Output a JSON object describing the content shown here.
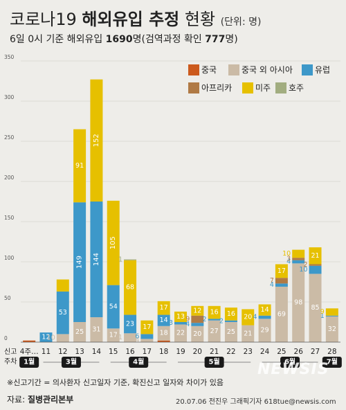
{
  "title": {
    "main": "코로나19",
    "bold": "해외유입 추정",
    "tail": "현황",
    "unit": "(단위: 명)"
  },
  "subtitle": {
    "prefix": "6일 0시 기준 해외유입",
    "total": "1690",
    "middle": "명(검역과정 확인",
    "quarantine": "777",
    "suffix": "명)"
  },
  "chart_data": {
    "type": "bar",
    "stacked": true,
    "ylim": [
      0,
      350
    ],
    "yticks": [
      0,
      50,
      100,
      150,
      200,
      250,
      300,
      350
    ],
    "legend_position": "top-right",
    "x_axis_caption": [
      "신고",
      "주차"
    ],
    "categories": [
      "4주…",
      "11",
      "12",
      "13",
      "14",
      "15",
      "16",
      "17",
      "18",
      "19",
      "20",
      "21",
      "22",
      "23",
      "24",
      "25",
      "26",
      "27",
      "28"
    ],
    "series": [
      {
        "name": "중국",
        "color": "#cc5a1d",
        "values": [
          2,
          0,
          0,
          0,
          0,
          0,
          0,
          0,
          2,
          0,
          0,
          0,
          0,
          0,
          0,
          0,
          0,
          0,
          0
        ]
      },
      {
        "name": "중국 외 아시아",
        "color": "#cbbba6",
        "values": [
          0,
          0,
          10,
          25,
          31,
          17,
          11,
          4,
          18,
          22,
          20,
          27,
          25,
          21,
          29,
          69,
          98,
          85,
          32
        ]
      },
      {
        "name": "유럽",
        "color": "#3d98c9",
        "values": [
          0,
          12,
          53,
          149,
          144,
          54,
          23,
          6,
          14,
          3,
          4,
          2,
          2,
          0,
          4,
          4,
          4,
          10,
          1
        ]
      },
      {
        "name": "아프리카",
        "color": "#b07a45",
        "values": [
          0,
          0,
          0,
          0,
          0,
          0,
          0,
          0,
          0,
          0,
          9,
          0,
          0,
          0,
          0,
          7,
          3,
          2,
          0
        ]
      },
      {
        "name": "미주",
        "color": "#e6c000",
        "values": [
          0,
          0,
          15,
          91,
          152,
          105,
          68,
          17,
          17,
          13,
          12,
          16,
          16,
          20,
          14,
          17,
          10,
          21,
          9
        ]
      },
      {
        "name": "호주",
        "color": "#a2ad80",
        "values": [
          0,
          0,
          0,
          0,
          0,
          0,
          1,
          0,
          0,
          0,
          0,
          0,
          0,
          0,
          0,
          0,
          0,
          0,
          0
        ]
      }
    ],
    "data_labels": [
      {
        "category": "11",
        "series": "유럽",
        "text": "12"
      },
      {
        "category": "12",
        "series": "중국 외 아시아",
        "text": "10"
      },
      {
        "category": "12",
        "series": "유럽",
        "text": "53"
      },
      {
        "category": "13",
        "series": "중국 외 아시아",
        "text": "25"
      },
      {
        "category": "13",
        "series": "유럽",
        "text": "149"
      },
      {
        "category": "13",
        "series": "미주",
        "text": "91"
      },
      {
        "category": "14",
        "series": "중국 외 아시아",
        "text": "31"
      },
      {
        "category": "14",
        "series": "유럽",
        "text": "144"
      },
      {
        "category": "14",
        "series": "미주",
        "text": "152"
      },
      {
        "category": "15",
        "series": "중국 외 아시아",
        "text": "17"
      },
      {
        "category": "15",
        "series": "유럽",
        "text": "54"
      },
      {
        "category": "15",
        "series": "미주",
        "text": "105"
      },
      {
        "category": "16",
        "series": "중국 외 아시아",
        "text": "11"
      },
      {
        "category": "16",
        "series": "유럽",
        "text": "23"
      },
      {
        "category": "16",
        "series": "미주",
        "text": "68"
      },
      {
        "category": "16",
        "series": "호주",
        "text": "1"
      },
      {
        "category": "17",
        "series": "중국 외 아시아",
        "text": "4"
      },
      {
        "category": "17",
        "series": "유럽",
        "text": "6"
      },
      {
        "category": "17",
        "series": "미주",
        "text": "17"
      },
      {
        "category": "18",
        "series": "중국 외 아시아",
        "text": "18"
      },
      {
        "category": "18",
        "series": "유럽",
        "text": "14"
      },
      {
        "category": "18",
        "series": "미주",
        "text": "17"
      },
      {
        "category": "19",
        "series": "중국 외 아시아",
        "text": "22"
      },
      {
        "category": "19",
        "series": "유럽",
        "text": "3"
      },
      {
        "category": "19",
        "series": "미주",
        "text": "13"
      },
      {
        "category": "20",
        "series": "중국 외 아시아",
        "text": "20"
      },
      {
        "category": "20",
        "series": "유럽",
        "text": "4"
      },
      {
        "category": "20",
        "series": "아프리카",
        "text": "9"
      },
      {
        "category": "20",
        "series": "미주",
        "text": "12"
      },
      {
        "category": "21",
        "series": "중국 외 아시아",
        "text": "27"
      },
      {
        "category": "21",
        "series": "유럽",
        "text": "2"
      },
      {
        "category": "21",
        "series": "미주",
        "text": "16"
      },
      {
        "category": "22",
        "series": "중국 외 아시아",
        "text": "25"
      },
      {
        "category": "22",
        "series": "유럽",
        "text": "2"
      },
      {
        "category": "22",
        "series": "미주",
        "text": "16"
      },
      {
        "category": "23",
        "series": "중국 외 아시아",
        "text": "21"
      },
      {
        "category": "23",
        "series": "미주",
        "text": "20"
      },
      {
        "category": "24",
        "series": "중국 외 아시아",
        "text": "29"
      },
      {
        "category": "24",
        "series": "유럽",
        "text": "4"
      },
      {
        "category": "24",
        "series": "미주",
        "text": "14"
      },
      {
        "category": "25",
        "series": "중국 외 아시아",
        "text": "69"
      },
      {
        "category": "25",
        "series": "유럽",
        "text": "4"
      },
      {
        "category": "25",
        "series": "아프리카",
        "text": "7"
      },
      {
        "category": "25",
        "series": "미주",
        "text": "17"
      },
      {
        "category": "26",
        "series": "중국 외 아시아",
        "text": "98"
      },
      {
        "category": "26",
        "series": "유럽",
        "text": "4"
      },
      {
        "category": "26",
        "series": "아프리카",
        "text": "3"
      },
      {
        "category": "26",
        "series": "미주",
        "text": "10"
      },
      {
        "category": "27",
        "series": "중국 외 아시아",
        "text": "85"
      },
      {
        "category": "27",
        "series": "유럽",
        "text": "10"
      },
      {
        "category": "27",
        "series": "아프리카",
        "text": "2"
      },
      {
        "category": "27",
        "series": "미주",
        "text": "21"
      },
      {
        "category": "28",
        "series": "중국 외 아시아",
        "text": "32"
      },
      {
        "category": "28",
        "series": "유럽",
        "text": "1"
      },
      {
        "category": "28",
        "series": "미주",
        "text": "9"
      }
    ],
    "months": [
      {
        "label": "1월",
        "from": "4주…",
        "to": "4주…"
      },
      {
        "label": "3월",
        "from": "11",
        "to": "14"
      },
      {
        "label": "4월",
        "from": "15",
        "to": "18"
      },
      {
        "label": "5월",
        "from": "19",
        "to": "23"
      },
      {
        "label": "6월",
        "from": "24",
        "to": "27"
      },
      {
        "label": "7월",
        "from": "28",
        "to": "28"
      }
    ]
  },
  "footnote": "※신고기간 = 의사환자 신고일자 기준, 확진신고 일자와 차이가 있음",
  "source": {
    "prefix": "자료:",
    "name": "질병관리본부"
  },
  "credit": "20.07.06 전진우 그래픽기자 618tue@newsis.com",
  "logo": "NEWSIS"
}
